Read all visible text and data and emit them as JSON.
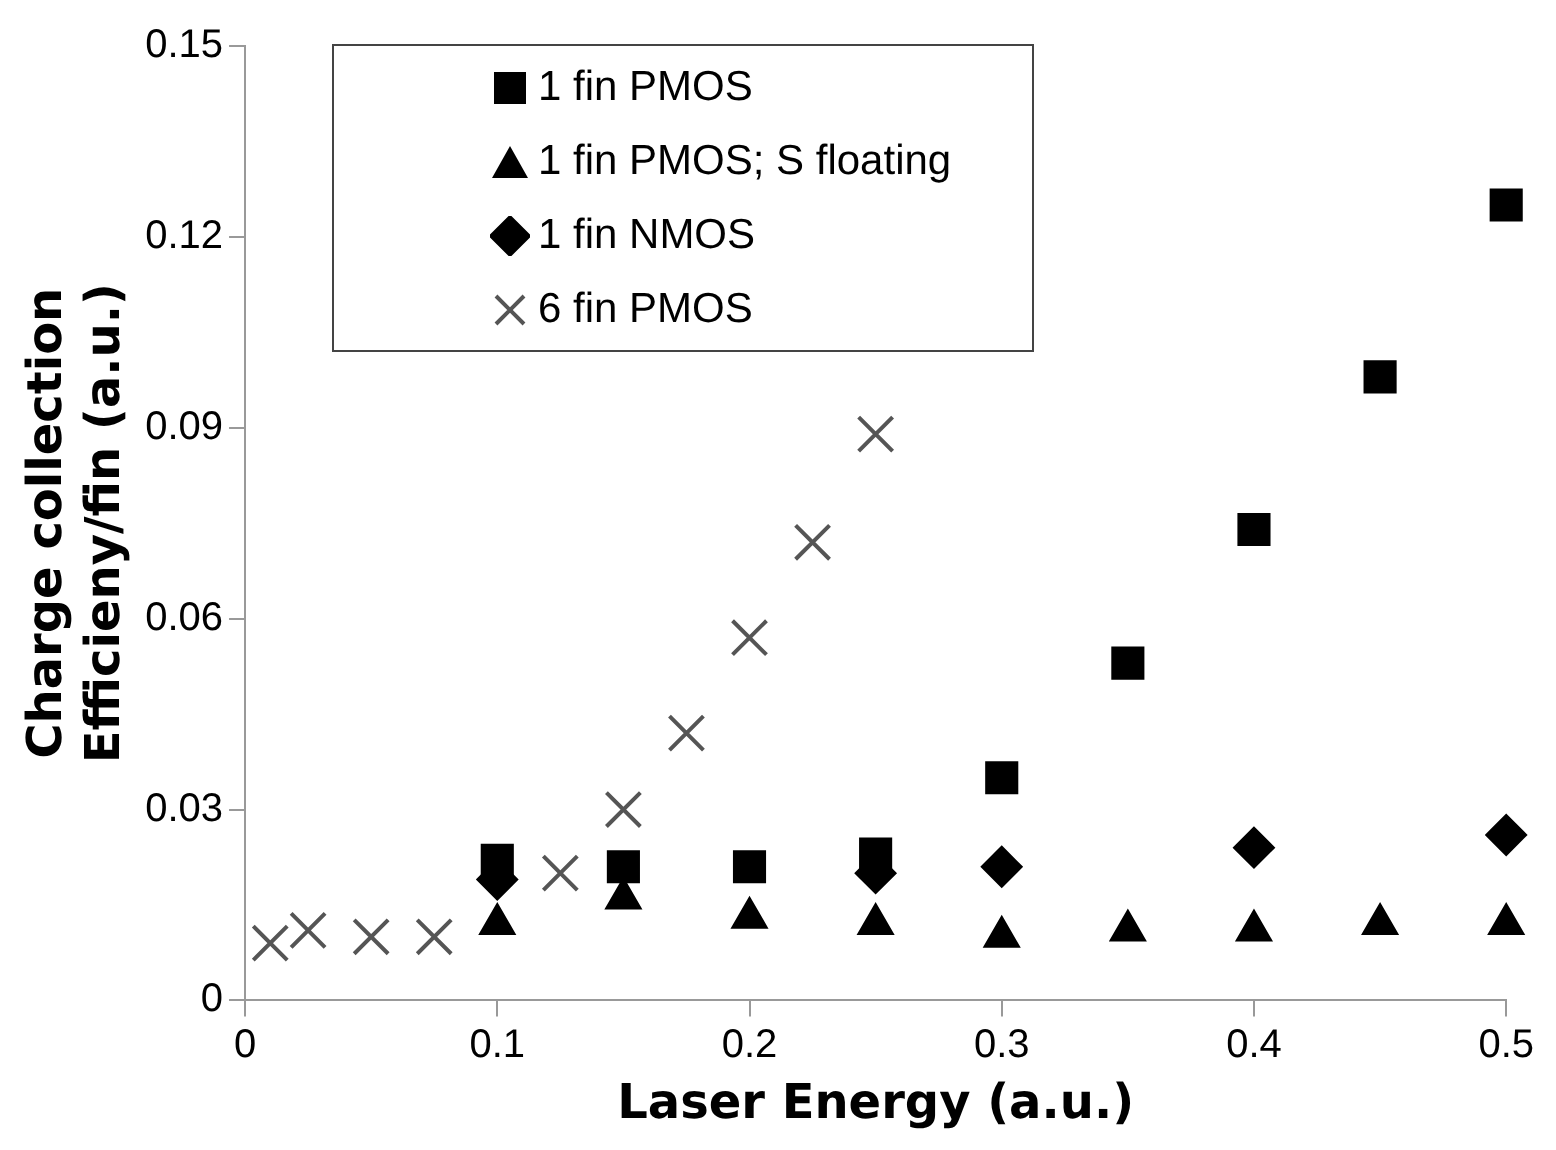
{
  "chart_data": {
    "type": "scatter",
    "xlabel": "Laser Energy (a.u.)",
    "ylabel": "Charge collection\nEfficieny/fin (a.u.)",
    "xlim": [
      0,
      0.5
    ],
    "ylim": [
      0,
      0.15
    ],
    "xticks": [
      0,
      0.1,
      0.2,
      0.3,
      0.4,
      0.5
    ],
    "yticks": [
      0,
      0.03,
      0.06,
      0.09,
      0.12,
      0.15
    ],
    "legend": "top left",
    "series": [
      {
        "name": "1 fin PMOS",
        "color": "#000000",
        "marker": "square",
        "x": [
          0.1,
          0.15,
          0.2,
          0.25,
          0.3,
          0.35,
          0.4,
          0.45,
          0.5
        ],
        "values": [
          0.022,
          0.021,
          0.021,
          0.023,
          0.035,
          0.053,
          0.074,
          0.098,
          0.125
        ]
      },
      {
        "name": "1 fin PMOS; S floating",
        "color": "#000000",
        "marker": "triangle",
        "x": [
          0.1,
          0.15,
          0.2,
          0.25,
          0.3,
          0.35,
          0.4,
          0.45,
          0.5
        ],
        "values": [
          0.012,
          0.016,
          0.013,
          0.012,
          0.01,
          0.011,
          0.011,
          0.012,
          0.012
        ]
      },
      {
        "name": "1 fin NMOS",
        "color": "#000000",
        "marker": "diamond",
        "x": [
          0.1,
          0.15,
          0.2,
          0.25,
          0.3,
          0.4,
          0.5
        ],
        "values": [
          0.019,
          null,
          null,
          0.02,
          0.021,
          0.024,
          0.026
        ]
      },
      {
        "name": "6 fin PMOS",
        "color": "#555555",
        "marker": "cross",
        "x": [
          0.01,
          0.025,
          0.05,
          0.075,
          0.1,
          0.125,
          0.15,
          0.175,
          0.2,
          0.225,
          0.25
        ],
        "values": [
          0.009,
          0.011,
          0.01,
          0.01,
          null,
          0.02,
          0.03,
          0.042,
          0.057,
          0.072,
          0.089
        ]
      }
    ]
  }
}
